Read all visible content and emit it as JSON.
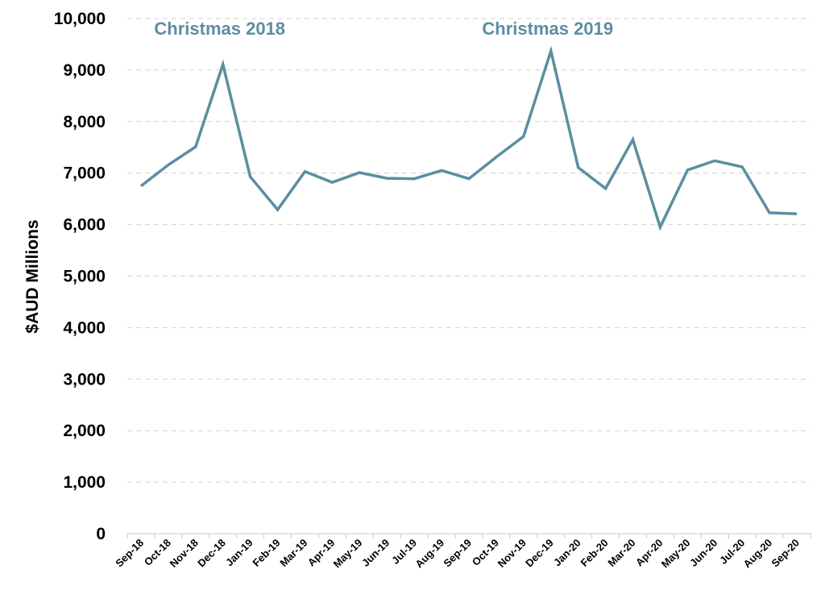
{
  "chart_data": {
    "type": "line",
    "ylabel": "$AUD Millions",
    "xlabel": "",
    "ylim": [
      0,
      10000
    ],
    "yticks": [
      "0",
      "1,000",
      "2,000",
      "3,000",
      "4,000",
      "5,000",
      "6,000",
      "7,000",
      "8,000",
      "9,000",
      "10,000"
    ],
    "grid": true,
    "line_color": "#5b8ea0",
    "categories": [
      "Sep-18",
      "Oct-18",
      "Nov-18",
      "Dec-18",
      "Jan-19",
      "Feb-19",
      "Mar-19",
      "Apr-19",
      "May-19",
      "Jun-19",
      "Jul-19",
      "Aug-19",
      "Sep-19",
      "Oct-19",
      "Nov-19",
      "Dec-19",
      "Jan-20",
      "Feb-20",
      "Mar-20",
      "Apr-20",
      "May-20",
      "Jun-20",
      "Jul-20",
      "Aug-20",
      "Sep-20"
    ],
    "series": [
      {
        "values": [
          6750,
          7160,
          7510,
          9110,
          6930,
          6290,
          7030,
          6820,
          7010,
          6900,
          6890,
          7050,
          6890,
          7310,
          7710,
          9370,
          7110,
          6700,
          7650,
          5950,
          7060,
          7240,
          7120,
          6230,
          6210
        ]
      }
    ],
    "annotations": [
      {
        "text": "Christmas 2018",
        "category": "Dec-18"
      },
      {
        "text": "Christmas 2019",
        "category": "Dec-19"
      }
    ]
  }
}
